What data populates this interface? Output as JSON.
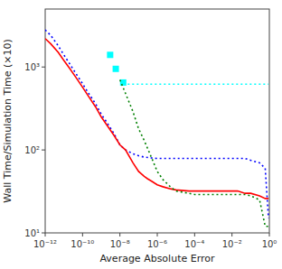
{
  "chart_data": {
    "type": "line",
    "xlabel": "Average Absolute Error",
    "ylabel": "Wall Time/Simulation Time (×10)",
    "log": true,
    "grid": false,
    "xlim": [
      1e-12,
      1.0
    ],
    "ylim": [
      10,
      5000
    ],
    "xticks": [
      {
        "value": 1e-12,
        "label": "10⁻¹²"
      },
      {
        "value": 1e-10,
        "label": "10⁻¹⁰"
      },
      {
        "value": 1e-08,
        "label": "10⁻⁸"
      },
      {
        "value": 1e-06,
        "label": "10⁻⁶"
      },
      {
        "value": 0.0001,
        "label": "10⁻⁴"
      },
      {
        "value": 0.01,
        "label": "10⁻²"
      },
      {
        "value": 1.0,
        "label": "10⁰"
      }
    ],
    "yticks": [
      {
        "value": 10,
        "label": "10¹"
      },
      {
        "value": 100,
        "label": "10²"
      },
      {
        "value": 1000,
        "label": "10³"
      }
    ],
    "series": [
      {
        "type": "line",
        "color": "cyan",
        "line_style": "dotted",
        "x": [
          1.5e-08,
          0.9
        ],
        "values": [
          620,
          620
        ]
      },
      {
        "type": "scatter",
        "color": "cyan",
        "marker": "square",
        "x": [
          3e-09,
          6e-09,
          1.5e-08
        ],
        "values": [
          1400,
          950,
          650
        ]
      },
      {
        "type": "line",
        "color": "blue",
        "line_style": "dotted",
        "x": [
          1e-12,
          2e-12,
          5e-12,
          1e-11,
          2e-11,
          5e-11,
          1e-10,
          2e-10,
          5e-10,
          1e-09,
          2e-09,
          5e-09,
          1e-08,
          2e-08,
          5e-08,
          1e-07,
          2e-07,
          5e-07,
          1e-06,
          2e-06,
          5e-06,
          1e-05,
          2e-05,
          5e-05,
          0.0001,
          0.0002,
          0.0005,
          0.001,
          0.002,
          0.005,
          0.01,
          0.015,
          0.02,
          0.05,
          0.1,
          0.3,
          0.6,
          0.9
        ],
        "values": [
          2800,
          2400,
          1800,
          1400,
          1100,
          800,
          630,
          490,
          360,
          270,
          215,
          155,
          115,
          100,
          90,
          85,
          82,
          80,
          79,
          79,
          79,
          79,
          79,
          79,
          79,
          79,
          79,
          79,
          79,
          79,
          79,
          79,
          79,
          79,
          75,
          70,
          60,
          15
        ]
      },
      {
        "type": "line",
        "color": "red",
        "line_style": "solid",
        "x": [
          1e-12,
          2e-12,
          5e-12,
          1e-11,
          2e-11,
          5e-11,
          1e-10,
          2e-10,
          5e-10,
          1e-09,
          2e-09,
          5e-09,
          1e-08,
          2e-08,
          5e-08,
          1e-07,
          2e-07,
          3e-07,
          5e-07,
          1e-06,
          2e-06,
          5e-06,
          1e-05,
          5e-05,
          0.0001,
          0.0005,
          0.001,
          0.005,
          0.01,
          0.02,
          0.05,
          0.1,
          0.3,
          0.6,
          0.9
        ],
        "values": [
          2200,
          1900,
          1500,
          1200,
          970,
          720,
          570,
          450,
          330,
          250,
          200,
          148,
          115,
          100,
          70,
          55,
          48,
          45,
          42,
          38,
          36,
          34,
          33,
          32,
          32,
          32,
          32,
          32,
          32,
          32,
          30,
          30,
          28,
          26,
          26
        ]
      },
      {
        "type": "line",
        "color": "green",
        "line_style": "dotted",
        "x": [
          1e-08,
          2e-08,
          5e-08,
          1e-07,
          2e-07,
          5e-07,
          1e-06,
          2e-06,
          5e-06,
          1e-05,
          5e-05,
          0.0001,
          0.0005,
          0.001,
          0.005,
          0.01,
          0.02,
          0.05,
          0.1,
          0.3,
          0.6,
          0.9
        ],
        "values": [
          700,
          480,
          290,
          180,
          130,
          80,
          55,
          44,
          36,
          32,
          30,
          29,
          29,
          29,
          29,
          29,
          29,
          29,
          28,
          25,
          12,
          12
        ]
      }
    ]
  }
}
